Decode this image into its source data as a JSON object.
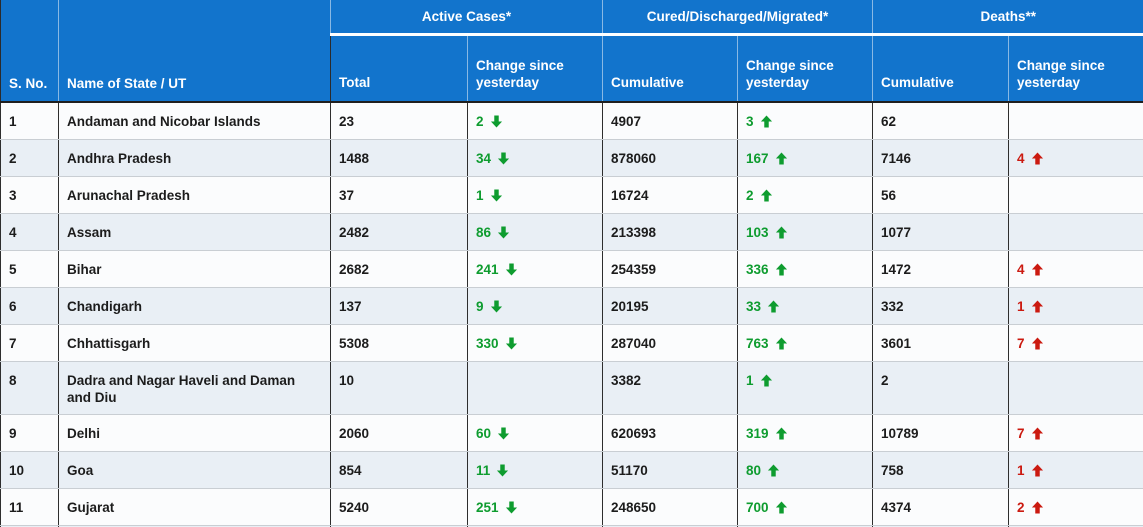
{
  "table": {
    "header": {
      "sno": "S. No.",
      "state": "Name of State / UT",
      "groups": [
        {
          "label": "Active Cases*",
          "sub": [
            "Total",
            "Change since yesterday"
          ]
        },
        {
          "label": "Cured/Discharged/Migrated*",
          "sub": [
            "Cumulative",
            "Change since yesterday"
          ]
        },
        {
          "label": "Deaths**",
          "sub": [
            "Cumulative",
            "Change since yesterday"
          ]
        }
      ]
    },
    "rows": [
      {
        "sno": "1",
        "state": "Andaman and Nicobar Islands",
        "active_total": "23",
        "active_change": {
          "value": "2",
          "arrow": "down",
          "tone": "green"
        },
        "cured_cumulative": "4907",
        "cured_change": {
          "value": "3",
          "arrow": "up",
          "tone": "green"
        },
        "deaths_cumulative": "62",
        "deaths_change": null
      },
      {
        "sno": "2",
        "state": "Andhra Pradesh",
        "active_total": "1488",
        "active_change": {
          "value": "34",
          "arrow": "down",
          "tone": "green"
        },
        "cured_cumulative": "878060",
        "cured_change": {
          "value": "167",
          "arrow": "up",
          "tone": "green"
        },
        "deaths_cumulative": "7146",
        "deaths_change": {
          "value": "4",
          "arrow": "up",
          "tone": "red"
        }
      },
      {
        "sno": "3",
        "state": "Arunachal Pradesh",
        "active_total": "37",
        "active_change": {
          "value": "1",
          "arrow": "down",
          "tone": "green"
        },
        "cured_cumulative": "16724",
        "cured_change": {
          "value": "2",
          "arrow": "up",
          "tone": "green"
        },
        "deaths_cumulative": "56",
        "deaths_change": null
      },
      {
        "sno": "4",
        "state": "Assam",
        "active_total": "2482",
        "active_change": {
          "value": "86",
          "arrow": "down",
          "tone": "green"
        },
        "cured_cumulative": "213398",
        "cured_change": {
          "value": "103",
          "arrow": "up",
          "tone": "green"
        },
        "deaths_cumulative": "1077",
        "deaths_change": null
      },
      {
        "sno": "5",
        "state": "Bihar",
        "active_total": "2682",
        "active_change": {
          "value": "241",
          "arrow": "down",
          "tone": "green"
        },
        "cured_cumulative": "254359",
        "cured_change": {
          "value": "336",
          "arrow": "up",
          "tone": "green"
        },
        "deaths_cumulative": "1472",
        "deaths_change": {
          "value": "4",
          "arrow": "up",
          "tone": "red"
        }
      },
      {
        "sno": "6",
        "state": "Chandigarh",
        "active_total": "137",
        "active_change": {
          "value": "9",
          "arrow": "down",
          "tone": "green"
        },
        "cured_cumulative": "20195",
        "cured_change": {
          "value": "33",
          "arrow": "up",
          "tone": "green"
        },
        "deaths_cumulative": "332",
        "deaths_change": {
          "value": "1",
          "arrow": "up",
          "tone": "red"
        }
      },
      {
        "sno": "7",
        "state": "Chhattisgarh",
        "active_total": "5308",
        "active_change": {
          "value": "330",
          "arrow": "down",
          "tone": "green"
        },
        "cured_cumulative": "287040",
        "cured_change": {
          "value": "763",
          "arrow": "up",
          "tone": "green"
        },
        "deaths_cumulative": "3601",
        "deaths_change": {
          "value": "7",
          "arrow": "up",
          "tone": "red"
        }
      },
      {
        "sno": "8",
        "state": "Dadra and Nagar Haveli and Daman and Diu",
        "active_total": "10",
        "active_change": null,
        "cured_cumulative": "3382",
        "cured_change": {
          "value": "1",
          "arrow": "up",
          "tone": "green"
        },
        "deaths_cumulative": "2",
        "deaths_change": null
      },
      {
        "sno": "9",
        "state": "Delhi",
        "active_total": "2060",
        "active_change": {
          "value": "60",
          "arrow": "down",
          "tone": "green"
        },
        "cured_cumulative": "620693",
        "cured_change": {
          "value": "319",
          "arrow": "up",
          "tone": "green"
        },
        "deaths_cumulative": "10789",
        "deaths_change": {
          "value": "7",
          "arrow": "up",
          "tone": "red"
        }
      },
      {
        "sno": "10",
        "state": "Goa",
        "active_total": "854",
        "active_change": {
          "value": "11",
          "arrow": "down",
          "tone": "green"
        },
        "cured_cumulative": "51170",
        "cured_change": {
          "value": "80",
          "arrow": "up",
          "tone": "green"
        },
        "deaths_cumulative": "758",
        "deaths_change": {
          "value": "1",
          "arrow": "up",
          "tone": "red"
        }
      },
      {
        "sno": "11",
        "state": "Gujarat",
        "active_total": "5240",
        "active_change": {
          "value": "251",
          "arrow": "down",
          "tone": "green"
        },
        "cured_cumulative": "248650",
        "cured_change": {
          "value": "700",
          "arrow": "up",
          "tone": "green"
        },
        "deaths_cumulative": "4374",
        "deaths_change": {
          "value": "2",
          "arrow": "up",
          "tone": "red"
        }
      }
    ]
  },
  "colors": {
    "header_bg": "#1274cc",
    "header_text": "#ffffff",
    "decrease_green": "#0e9c2f",
    "increase_red": "#cb1a10",
    "row_bg": "#fbfcfd",
    "row_alt_bg": "#e9eff5"
  },
  "icons": {
    "up": "arrow-up-icon",
    "down": "arrow-down-icon"
  }
}
